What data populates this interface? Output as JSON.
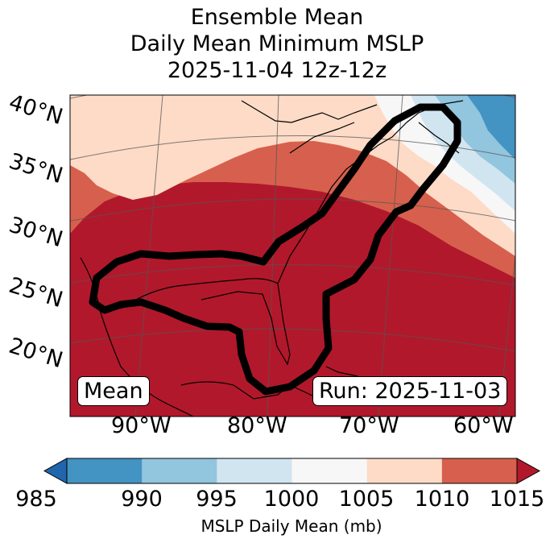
{
  "title": {
    "line1": "Ensemble Mean",
    "line2": "Daily Mean Minimum MSLP",
    "line3": "2025-11-04 12z-12z"
  },
  "map": {
    "lat_labels": [
      "40°N",
      "35°N",
      "30°N",
      "25°N",
      "20°N"
    ],
    "lon_labels": [
      "90°W",
      "80°W",
      "70°W",
      "60°W"
    ],
    "mean_box": "Mean",
    "run_box": "Run: 2025-11-03",
    "contour_color": "#000000"
  },
  "colorbar": {
    "label": "MSLP Daily Mean (mb)",
    "ticks": [
      "985",
      "990",
      "995",
      "1000",
      "1005",
      "1010",
      "1015"
    ],
    "colors": [
      "#2166ac",
      "#4393c3",
      "#92c5de",
      "#d1e5f0",
      "#f7f7f7",
      "#fddbc7",
      "#d6604d",
      "#b2182b"
    ]
  }
}
